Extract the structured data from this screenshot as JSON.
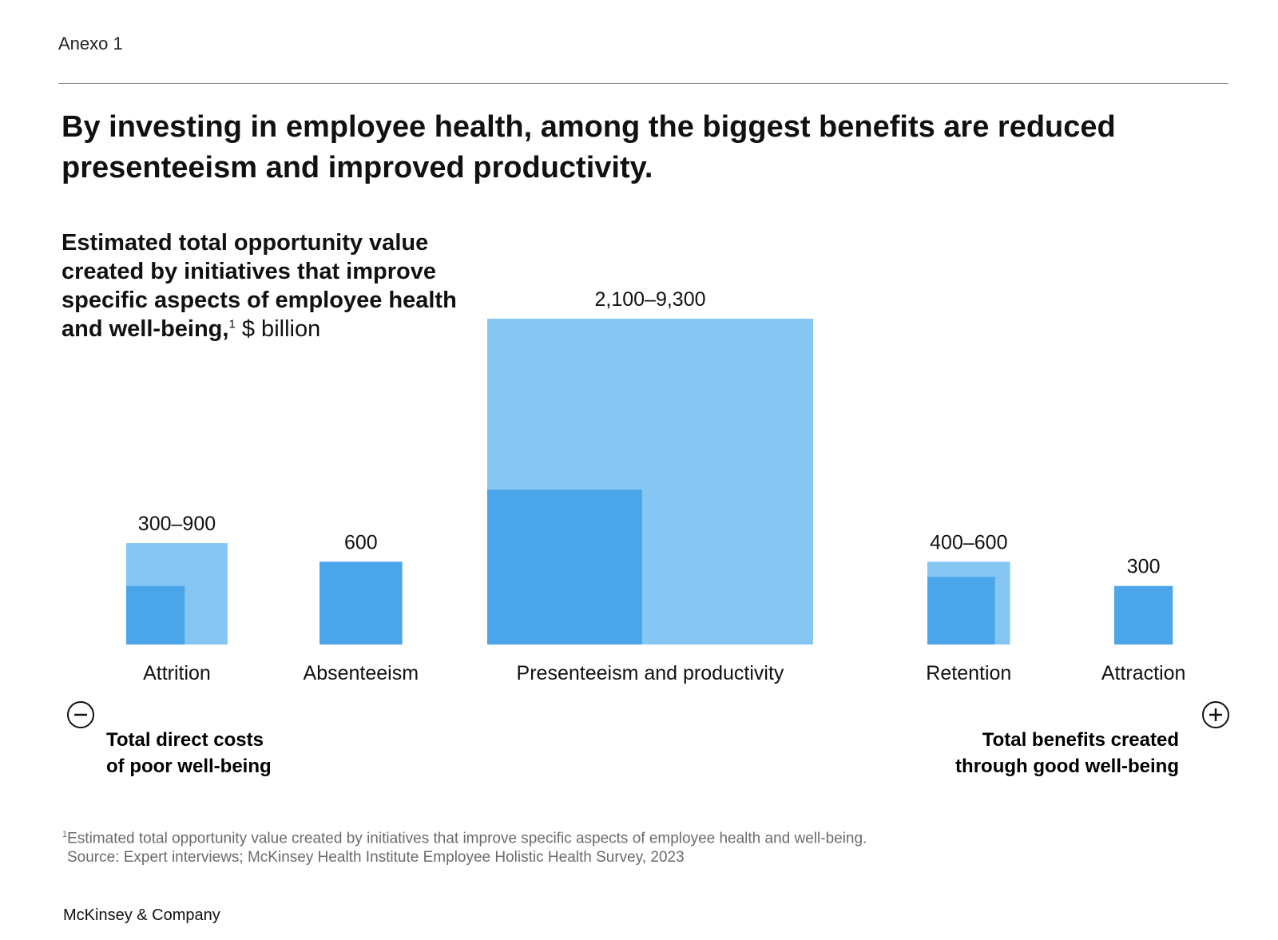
{
  "exhibit_label": "Anexo 1",
  "title": "By investing in employee health, among the biggest benefits are reduced presenteeism and improved productivity.",
  "subtitle": {
    "bold": "Estimated total opportunity value created by initiatives that improve specific aspects of employee health and well-being,",
    "footnote_marker": "1",
    "unit": "$ billion"
  },
  "colors": {
    "low": "#4ba5ea",
    "high": "#85c7f2",
    "axis": "#666666"
  },
  "chart_data": {
    "type": "bar",
    "encoding": "nested squares; area proportional to value; darker inner square = low estimate, lighter outer square = high estimate",
    "categories": [
      "Attrition",
      "Absenteeism",
      "Presenteeism and productivity",
      "Retention",
      "Attraction"
    ],
    "value_labels": [
      "300–900",
      "600",
      "2,100–9,300",
      "400–600",
      "300"
    ],
    "series": [
      {
        "values": [
          300,
          600,
          2100,
          400,
          300
        ]
      },
      {
        "values": [
          900,
          600,
          9300,
          600,
          300
        ]
      }
    ],
    "unit": "$ billion",
    "axis": {
      "left_symbol": "−",
      "right_symbol": "+",
      "left_label": [
        "Total direct costs",
        "of poor well-being"
      ],
      "right_label": [
        "Total benefits created",
        "through good well-being"
      ]
    }
  },
  "footnote": {
    "marker": "1",
    "text": "Estimated total opportunity value created by initiatives that improve specific aspects of employee health and well-being.",
    "source": "Source: Expert interviews; McKinsey Health Institute Employee Holistic Health Survey, 2023"
  },
  "brand": "McKinsey & Company"
}
